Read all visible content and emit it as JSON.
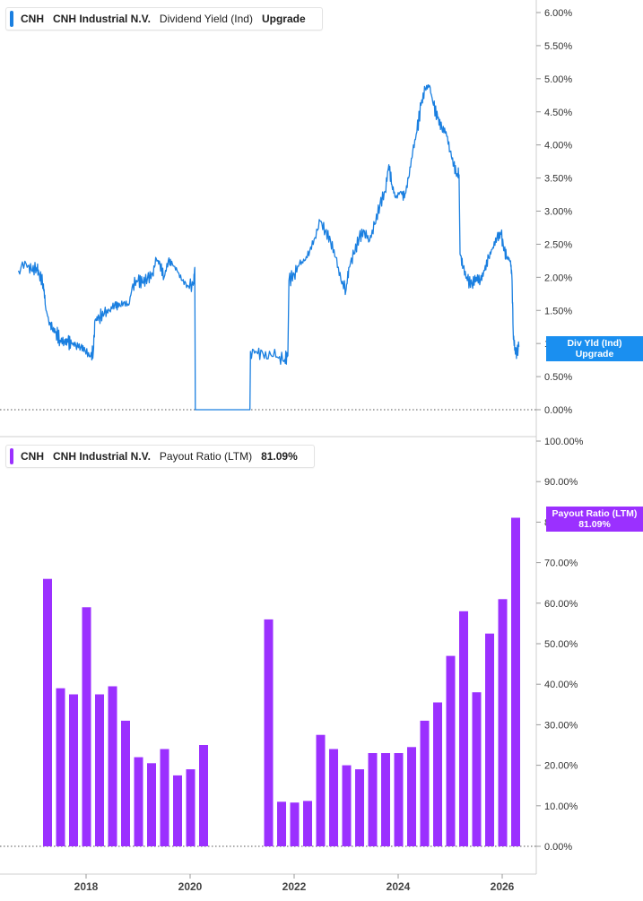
{
  "panels": {
    "top": {
      "legend": {
        "ticker": "CNH",
        "company": "CNH Industrial N.V.",
        "metric": "Dividend Yield (Ind)",
        "value": "Upgrade"
      },
      "tag": {
        "line1": "Div Yld (Ind)",
        "line2": "Upgrade"
      },
      "color": "#1a7fe0"
    },
    "bottom": {
      "legend": {
        "ticker": "CNH",
        "company": "CNH Industrial N.V.",
        "metric": "Payout Ratio (LTM)",
        "value": "81.09%"
      },
      "tag": {
        "line1": "Payout Ratio (LTM)",
        "line2": "81.09%"
      },
      "color": "#9b30ff"
    }
  },
  "chart_data": [
    {
      "type": "line",
      "series": [
        {
          "name": "Dividend Yield (Ind)",
          "points": [
            [
              2016.7,
              2.1
            ],
            [
              2016.85,
              2.2
            ],
            [
              2016.95,
              2.1
            ],
            [
              2017.05,
              2.15
            ],
            [
              2017.1,
              2.05
            ],
            [
              2017.18,
              1.9
            ],
            [
              2017.22,
              1.55
            ],
            [
              2017.28,
              1.35
            ],
            [
              2017.35,
              1.22
            ],
            [
              2017.42,
              1.18
            ],
            [
              2017.5,
              1.05
            ],
            [
              2017.58,
              1.03
            ],
            [
              2017.65,
              1.02
            ],
            [
              2017.72,
              1.0
            ],
            [
              2017.8,
              0.98
            ],
            [
              2017.9,
              0.95
            ],
            [
              2017.98,
              0.9
            ],
            [
              2018.08,
              0.8
            ],
            [
              2018.14,
              0.88
            ],
            [
              2018.17,
              1.35
            ],
            [
              2018.25,
              1.4
            ],
            [
              2018.35,
              1.45
            ],
            [
              2018.45,
              1.5
            ],
            [
              2018.55,
              1.6
            ],
            [
              2018.62,
              1.55
            ],
            [
              2018.72,
              1.62
            ],
            [
              2018.82,
              1.58
            ],
            [
              2018.9,
              1.9
            ],
            [
              2019.0,
              1.95
            ],
            [
              2019.08,
              1.92
            ],
            [
              2019.18,
              1.98
            ],
            [
              2019.28,
              2.05
            ],
            [
              2019.35,
              2.28
            ],
            [
              2019.42,
              2.2
            ],
            [
              2019.5,
              2.0
            ],
            [
              2019.58,
              2.25
            ],
            [
              2019.66,
              2.2
            ],
            [
              2019.75,
              2.1
            ],
            [
              2019.85,
              1.95
            ],
            [
              2019.95,
              1.88
            ],
            [
              2020.06,
              1.88
            ],
            [
              2020.09,
              2.15
            ],
            [
              2020.1,
              0.0
            ],
            [
              2021.15,
              0.0
            ],
            [
              2021.16,
              0.88
            ],
            [
              2021.28,
              0.87
            ],
            [
              2021.4,
              0.85
            ],
            [
              2021.55,
              0.83
            ],
            [
              2021.7,
              0.78
            ],
            [
              2021.82,
              0.76
            ],
            [
              2021.88,
              0.82
            ],
            [
              2021.9,
              1.95
            ],
            [
              2022.0,
              2.05
            ],
            [
              2022.1,
              2.2
            ],
            [
              2022.2,
              2.25
            ],
            [
              2022.3,
              2.4
            ],
            [
              2022.4,
              2.6
            ],
            [
              2022.5,
              2.85
            ],
            [
              2022.6,
              2.7
            ],
            [
              2022.7,
              2.55
            ],
            [
              2022.8,
              2.3
            ],
            [
              2022.9,
              1.95
            ],
            [
              2023.0,
              1.82
            ],
            [
              2023.05,
              2.15
            ],
            [
              2023.15,
              2.35
            ],
            [
              2023.25,
              2.6
            ],
            [
              2023.35,
              2.7
            ],
            [
              2023.45,
              2.55
            ],
            [
              2023.55,
              2.8
            ],
            [
              2023.65,
              3.1
            ],
            [
              2023.75,
              3.3
            ],
            [
              2023.82,
              3.7
            ],
            [
              2023.88,
              3.4
            ],
            [
              2023.95,
              3.2
            ],
            [
              2024.05,
              3.3
            ],
            [
              2024.12,
              3.2
            ],
            [
              2024.2,
              3.5
            ],
            [
              2024.28,
              3.9
            ],
            [
              2024.36,
              4.2
            ],
            [
              2024.44,
              4.6
            ],
            [
              2024.52,
              4.85
            ],
            [
              2024.6,
              4.9
            ],
            [
              2024.68,
              4.6
            ],
            [
              2024.76,
              4.4
            ],
            [
              2024.84,
              4.25
            ],
            [
              2024.92,
              4.2
            ],
            [
              2025.0,
              3.9
            ],
            [
              2025.07,
              3.7
            ],
            [
              2025.13,
              3.55
            ],
            [
              2025.17,
              3.55
            ],
            [
              2025.19,
              2.35
            ],
            [
              2025.25,
              2.15
            ],
            [
              2025.33,
              1.95
            ],
            [
              2025.42,
              1.9
            ],
            [
              2025.5,
              2.0
            ],
            [
              2025.58,
              1.95
            ],
            [
              2025.66,
              2.1
            ],
            [
              2025.74,
              2.3
            ],
            [
              2025.82,
              2.45
            ],
            [
              2025.9,
              2.6
            ],
            [
              2025.98,
              2.65
            ],
            [
              2026.04,
              2.4
            ],
            [
              2026.1,
              2.3
            ],
            [
              2026.16,
              2.25
            ],
            [
              2026.19,
              1.95
            ],
            [
              2026.21,
              1.2
            ],
            [
              2026.24,
              0.9
            ],
            [
              2026.28,
              0.88
            ],
            [
              2026.32,
              0.95
            ]
          ]
        }
      ],
      "ylim": [
        0,
        6
      ],
      "yticks": [
        "0.00%",
        "0.50%",
        "1.00%",
        "1.50%",
        "2.00%",
        "2.50%",
        "3.00%",
        "3.50%",
        "4.00%",
        "4.50%",
        "5.00%",
        "5.50%",
        "6.00%"
      ]
    },
    {
      "type": "bar",
      "series": [
        {
          "name": "Payout Ratio (LTM)",
          "points": [
            [
              2017.25,
              66
            ],
            [
              2017.5,
              39
            ],
            [
              2017.75,
              37.5
            ],
            [
              2018.0,
              59
            ],
            [
              2018.25,
              37.5
            ],
            [
              2018.5,
              39.5
            ],
            [
              2018.75,
              31
            ],
            [
              2019.0,
              22
            ],
            [
              2019.25,
              20.5
            ],
            [
              2019.5,
              24
            ],
            [
              2019.75,
              17.5
            ],
            [
              2020.0,
              19
            ],
            [
              2020.25,
              25
            ],
            [
              2021.5,
              56
            ],
            [
              2021.75,
              11
            ],
            [
              2022.0,
              10.8
            ],
            [
              2022.25,
              11.2
            ],
            [
              2022.5,
              27.5
            ],
            [
              2022.75,
              24
            ],
            [
              2023.0,
              20
            ],
            [
              2023.25,
              19
            ],
            [
              2023.5,
              23
            ],
            [
              2023.75,
              23
            ],
            [
              2024.0,
              23
            ],
            [
              2024.25,
              24.5
            ],
            [
              2024.5,
              31
            ],
            [
              2024.75,
              35.5
            ],
            [
              2025.0,
              47
            ],
            [
              2025.25,
              58
            ],
            [
              2025.5,
              38
            ],
            [
              2025.75,
              52.5
            ],
            [
              2026.0,
              61
            ],
            [
              2026.25,
              81.09
            ]
          ]
        }
      ],
      "ylim": [
        0,
        100
      ],
      "yticks": [
        "0.00%",
        "10.00%",
        "20.00%",
        "30.00%",
        "40.00%",
        "50.00%",
        "60.00%",
        "70.00%",
        "80.00%",
        "90.00%",
        "100.00%"
      ]
    }
  ],
  "x_axis": {
    "ticks": [
      "2018",
      "2020",
      "2022",
      "2024",
      "2026"
    ]
  }
}
